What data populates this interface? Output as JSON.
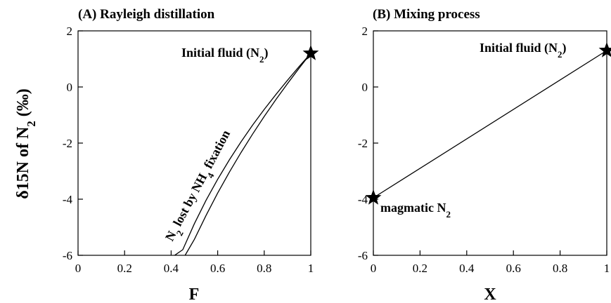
{
  "ylabel_shared": {
    "main": "δ15N of N",
    "sub": "2",
    "unit": " (‰)"
  },
  "chart_data": [
    {
      "type": "line",
      "title": "(A) Rayleigh distillation",
      "xlabel": "F",
      "ylabel": "δ15N of N2 (‰)",
      "xlim": [
        0,
        1
      ],
      "ylim": [
        -6,
        2
      ],
      "xticks": [
        "0",
        "0.2",
        "0.4",
        "0.6",
        "0.8",
        "1"
      ],
      "yticks": [
        "2",
        "0",
        "-2",
        "-4",
        "-6"
      ],
      "xtick_values": [
        0,
        0.2,
        0.4,
        0.6,
        0.8,
        1
      ],
      "ytick_values": [
        2,
        0,
        -2,
        -4,
        -6
      ],
      "grid": false,
      "series": [
        {
          "x": [
            1.0,
            0.95,
            0.9,
            0.85,
            0.8,
            0.75,
            0.7,
            0.65,
            0.6,
            0.55,
            0.5,
            0.45,
            0.415
          ],
          "y": [
            1.2,
            0.73,
            0.24,
            -0.27,
            -0.8,
            -1.36,
            -1.96,
            -2.6,
            -3.29,
            -4.04,
            -4.87,
            -5.8,
            -6.0
          ]
        },
        {
          "x": [
            1.0,
            0.95,
            0.9,
            0.85,
            0.8,
            0.75,
            0.7,
            0.65,
            0.6,
            0.55,
            0.5,
            0.46
          ],
          "y": [
            1.2,
            0.67,
            0.12,
            -0.45,
            -1.05,
            -1.68,
            -2.34,
            -3.04,
            -3.78,
            -4.58,
            -5.43,
            -6.0
          ]
        }
      ],
      "markers": [
        {
          "x": 1.0,
          "y": 1.2,
          "shape": "star"
        }
      ],
      "annotations": [
        {
          "main": "Initial fluid (N",
          "sub": "2",
          "tail": ")"
        },
        {
          "main": "N",
          "sub": "2",
          "mid": " lost by NH",
          "sub2": "4",
          "tail": " fixation"
        }
      ]
    },
    {
      "type": "line",
      "title": "(B) Mixing process",
      "xlabel": "X",
      "ylabel": "",
      "xlim": [
        0,
        1
      ],
      "ylim": [
        -6,
        2
      ],
      "xticks": [
        "0",
        "0.2",
        "0.4",
        "0.6",
        "0.8",
        "1"
      ],
      "yticks": [
        "2",
        "0",
        "-2",
        "-4",
        "-6"
      ],
      "xtick_values": [
        0,
        0.2,
        0.4,
        0.6,
        0.8,
        1
      ],
      "ytick_values": [
        2,
        0,
        -2,
        -4,
        -6
      ],
      "grid": false,
      "series": [
        {
          "x": [
            0,
            1
          ],
          "y": [
            -3.95,
            1.3
          ]
        }
      ],
      "markers": [
        {
          "x": 0,
          "y": -3.95,
          "shape": "star"
        },
        {
          "x": 1,
          "y": 1.3,
          "shape": "star"
        }
      ],
      "annotations": [
        {
          "main": "Initial fluid (N",
          "sub": "2",
          "tail": ")"
        },
        {
          "main": "magmatic N",
          "sub": "2",
          "tail": ""
        }
      ]
    }
  ]
}
